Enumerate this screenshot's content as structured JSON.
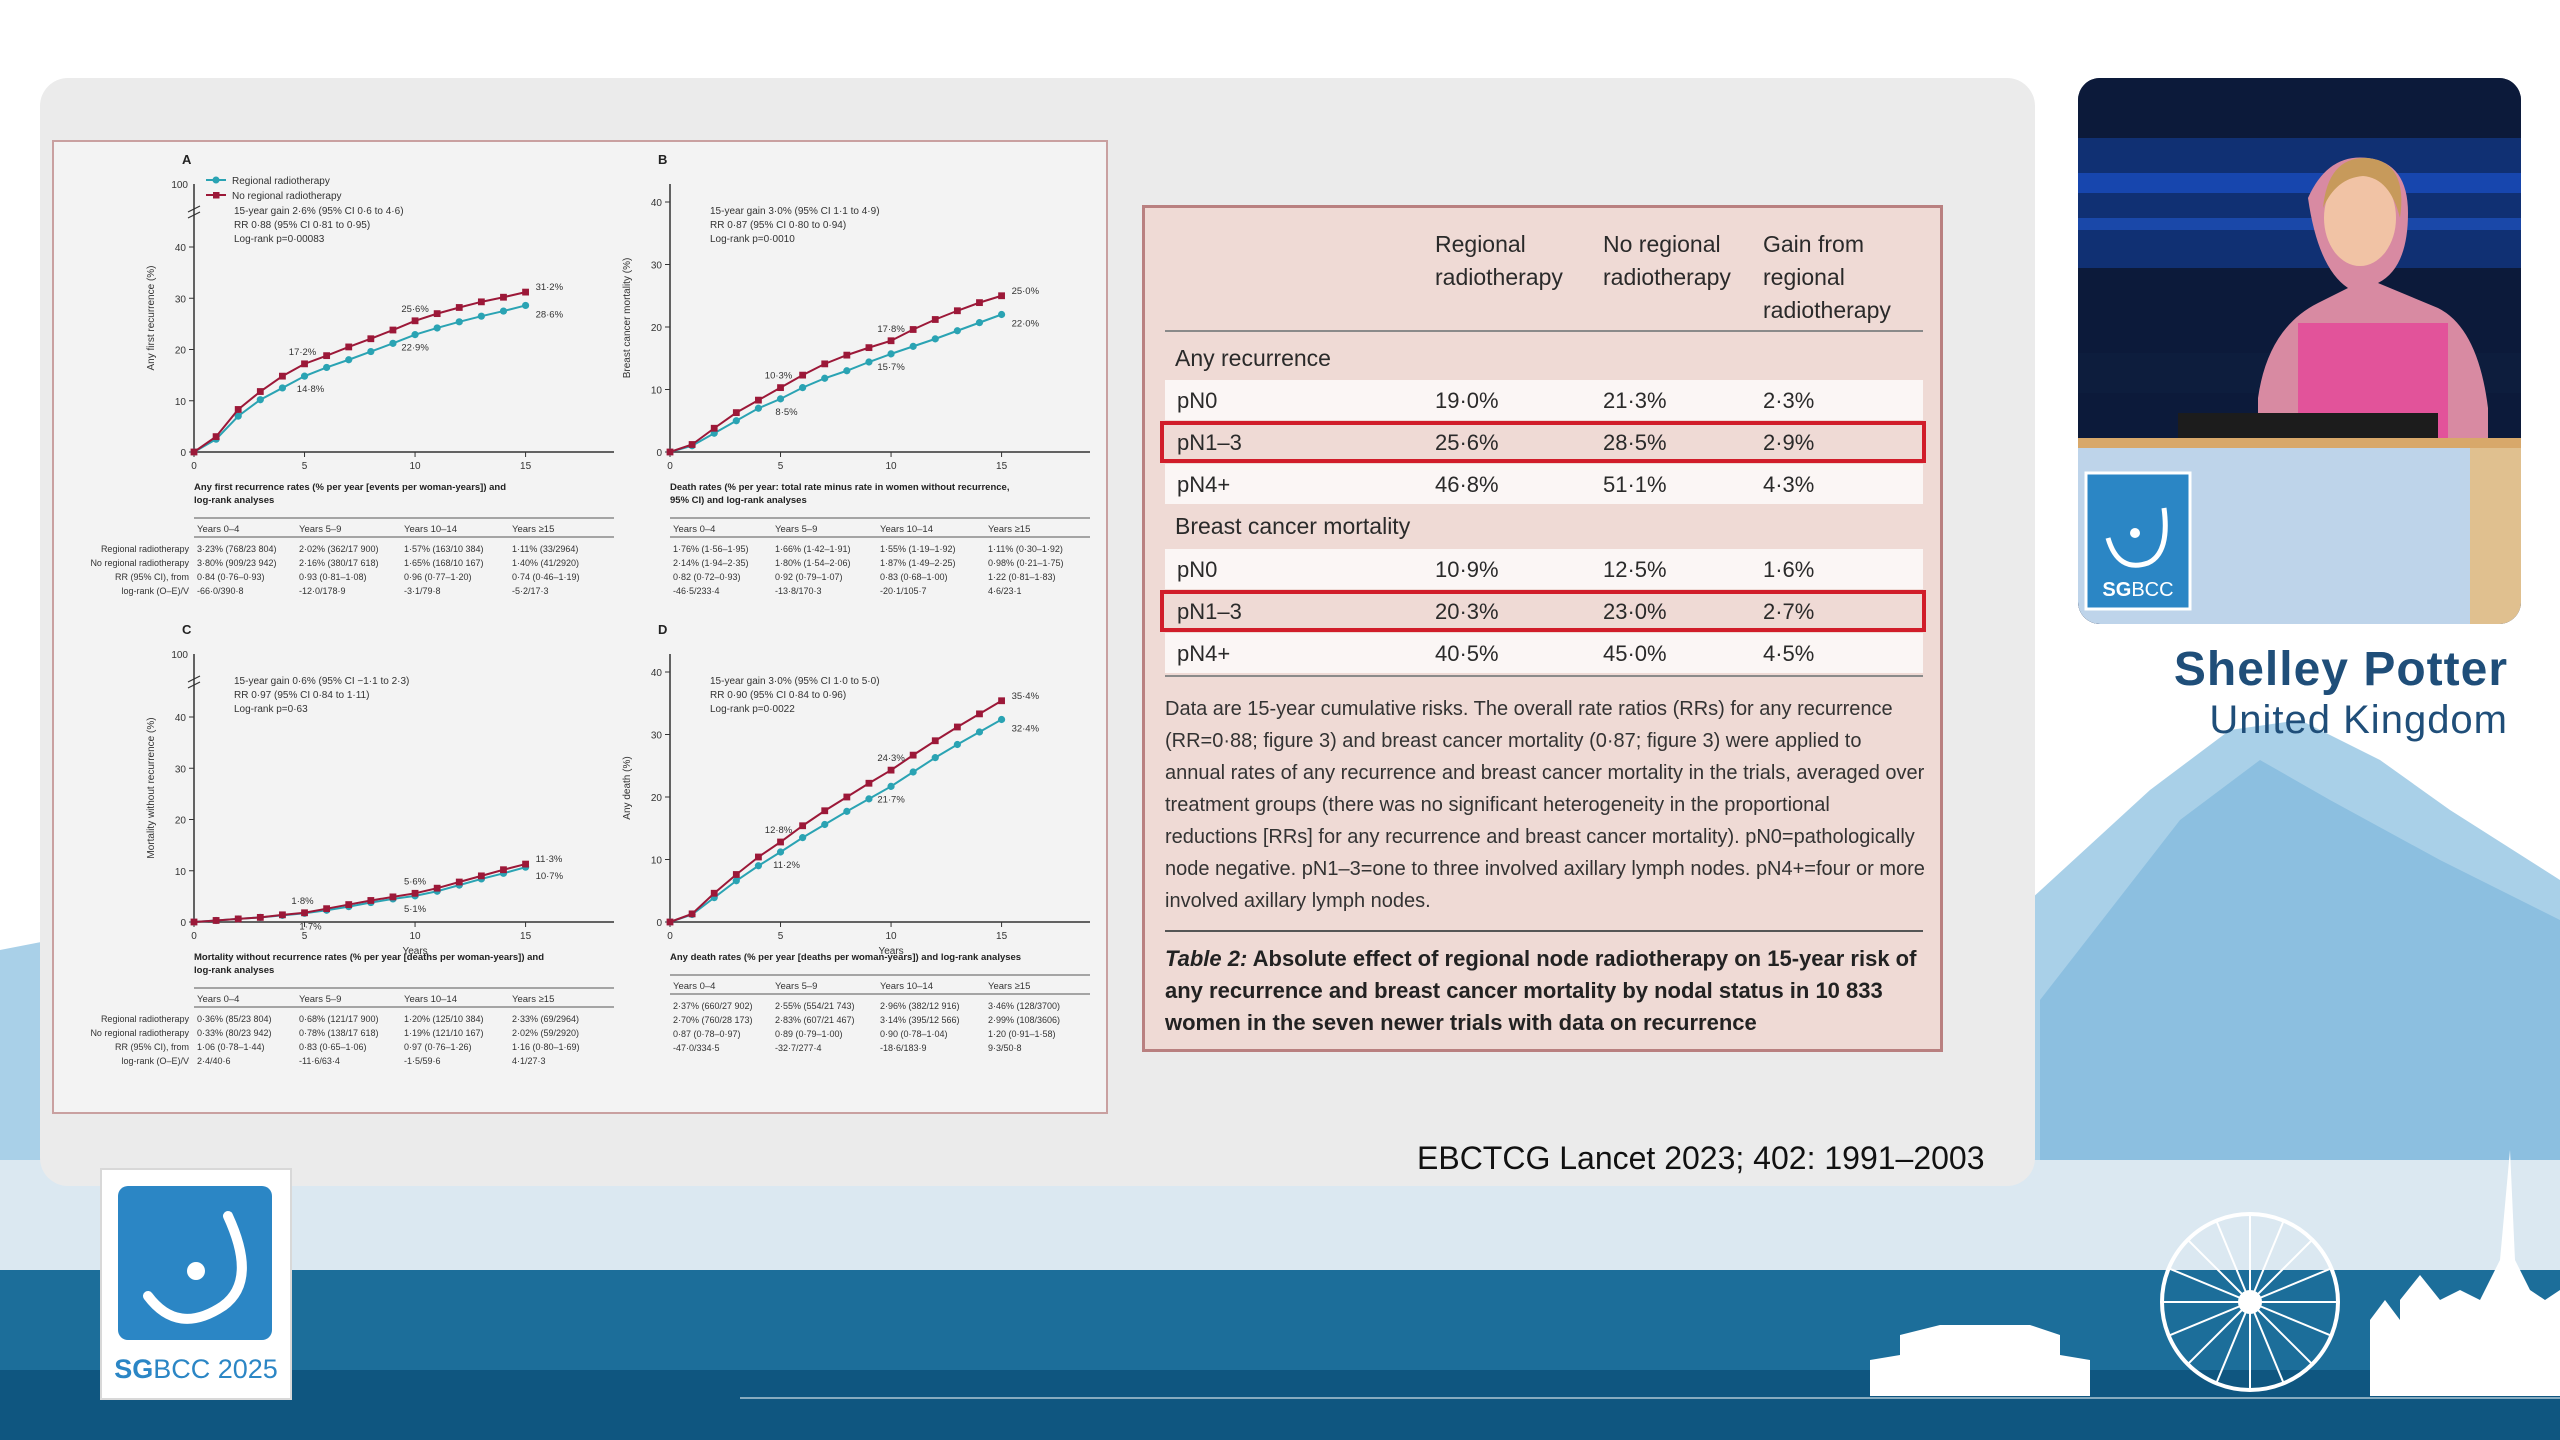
{
  "citation": "EBCTCG Lancet 2023; 402: 1991–2003",
  "speaker": {
    "name": "Shelley Potter",
    "country": "United Kingdom"
  },
  "branding": {
    "conference_sg": "SG",
    "conference_bcc": "BCC",
    "conference_year": " 2025",
    "podium_logo_sg": "SG",
    "podium_logo_bcc": "BCC"
  },
  "colors": {
    "regional": "#2aa3b3",
    "no_regional": "#9c1838",
    "accent_red": "#d11d2a",
    "brand_blue": "#2b86c5",
    "band_blue": "#1c6e9a"
  },
  "legend": {
    "regional": "Regional radiotherapy",
    "no_regional": "No regional radiotherapy"
  },
  "chart_data": [
    {
      "type": "line",
      "panel": "A",
      "ylabel": "Any first recurrence (%)",
      "xlabel": "",
      "ylim": [
        0,
        40
      ],
      "ybreak_top": 100,
      "yticks": [
        0,
        10,
        20,
        30,
        40
      ],
      "x": [
        0,
        1,
        2,
        3,
        4,
        5,
        6,
        7,
        8,
        9,
        10,
        11,
        12,
        13,
        14,
        15
      ],
      "series": [
        {
          "name": "Regional radiotherapy",
          "values": [
            0,
            2.5,
            7,
            10.2,
            12.5,
            14.8,
            16.5,
            18,
            19.6,
            21.2,
            22.9,
            24.2,
            25.4,
            26.5,
            27.5,
            28.6
          ]
        },
        {
          "name": "No regional radiotherapy",
          "values": [
            0,
            3,
            8.3,
            11.8,
            14.8,
            17.2,
            18.8,
            20.5,
            22.1,
            23.8,
            25.6,
            27,
            28.2,
            29.3,
            30.2,
            31.2
          ]
        }
      ],
      "annotations": [
        {
          "x": 5,
          "y": 17.2,
          "text": "17·2%"
        },
        {
          "x": 5,
          "y": 14.8,
          "text": "14·8%"
        },
        {
          "x": 10,
          "y": 25.6,
          "text": "25·6%"
        },
        {
          "x": 10,
          "y": 22.9,
          "text": "22·9%"
        },
        {
          "x": 15,
          "y": 31.2,
          "text": "31·2%"
        },
        {
          "x": 15,
          "y": 28.6,
          "text": "28·6%"
        }
      ],
      "stats": [
        "15-year gain 2·6% (95% CI 0·6 to 4·6)",
        "RR 0·88 (95% CI 0·81 to 0·95)",
        "Log-rank p=0·00083"
      ],
      "table_title": [
        "Any first recurrence rates (% per year [events per woman-years]) and",
        "log-rank analyses"
      ],
      "table_cols": [
        "Years 0–4",
        "Years 5–9",
        "Years 10–14",
        "Years ≥15"
      ],
      "table_rows": [
        {
          "label": "Regional radiotherapy",
          "cells": [
            "3·23% (768/23 804)",
            "2·02% (362/17 900)",
            "1·57% (163/10 384)",
            "1·11% (33/2964)"
          ]
        },
        {
          "label": "No regional radiotherapy",
          "cells": [
            "3·80% (909/23 942)",
            "2·16% (380/17 618)",
            "1·65% (168/10 167)",
            "1·40% (41/2920)"
          ]
        },
        {
          "label": "RR (95% CI), from",
          "cells": [
            "0·84 (0·76–0·93)",
            "0·93 (0·81–1·08)",
            "0·96 (0·77–1·20)",
            "0·74 (0·46–1·19)"
          ]
        },
        {
          "label": "log-rank (O–E)/V",
          "cells": [
            "-66·0/390·8",
            "-12·0/178·9",
            "-3·1/79·8",
            "-5·2/17·3"
          ]
        }
      ]
    },
    {
      "type": "line",
      "panel": "B",
      "ylabel": "Breast cancer mortality (%)",
      "xlabel": "",
      "ylim": [
        0,
        40
      ],
      "ybreak_top": null,
      "yticks": [
        0,
        10,
        20,
        30,
        40
      ],
      "x": [
        0,
        1,
        2,
        3,
        4,
        5,
        6,
        7,
        8,
        9,
        10,
        11,
        12,
        13,
        14,
        15
      ],
      "series": [
        {
          "name": "Regional radiotherapy",
          "values": [
            0,
            1,
            3,
            5,
            7,
            8.5,
            10.3,
            11.8,
            13,
            14.4,
            15.7,
            16.9,
            18.1,
            19.4,
            20.7,
            22.0
          ]
        },
        {
          "name": "No regional radiotherapy",
          "values": [
            0,
            1.2,
            3.8,
            6.3,
            8.3,
            10.3,
            12.3,
            14.1,
            15.5,
            16.7,
            17.8,
            19.6,
            21.2,
            22.6,
            23.9,
            25.0
          ]
        }
      ],
      "annotations": [
        {
          "x": 5,
          "y": 10.3,
          "text": "10·3%"
        },
        {
          "x": 5,
          "y": 8.5,
          "text": "8·5%"
        },
        {
          "x": 10,
          "y": 17.8,
          "text": "17·8%"
        },
        {
          "x": 10,
          "y": 15.7,
          "text": "15·7%"
        },
        {
          "x": 15,
          "y": 25.0,
          "text": "25·0%"
        },
        {
          "x": 15,
          "y": 22.0,
          "text": "22·0%"
        }
      ],
      "stats": [
        "15-year gain 3·0% (95% CI 1·1 to 4·9)",
        "RR 0·87 (95% CI 0·80 to 0·94)",
        "Log-rank p=0·0010"
      ],
      "table_title": [
        "Death rates (% per year: total rate minus rate in women without recurrence,",
        "95% CI) and log-rank analyses"
      ],
      "table_cols": [
        "Years 0–4",
        "Years 5–9",
        "Years 10–14",
        "Years ≥15"
      ],
      "table_rows": [
        {
          "label": "",
          "cells": [
            "1·76% (1·56–1·95)",
            "1·66% (1·42–1·91)",
            "1·55% (1·19–1·92)",
            "1·11% (0·30–1·92)"
          ]
        },
        {
          "label": "",
          "cells": [
            "2·14% (1·94–2·35)",
            "1·80% (1·54–2·06)",
            "1·87% (1·49–2·25)",
            "0·98% (0·21–1·75)"
          ]
        },
        {
          "label": "",
          "cells": [
            "0·82 (0·72–0·93)",
            "0·92 (0·79–1·07)",
            "0·83 (0·68–1·00)",
            "1·22 (0·81–1·83)"
          ]
        },
        {
          "label": "",
          "cells": [
            "-46·5/233·4",
            "-13·8/170·3",
            "-20·1/105·7",
            "4·6/23·1"
          ]
        }
      ]
    },
    {
      "type": "line",
      "panel": "C",
      "ylabel": "Mortality without recurrence (%)",
      "xlabel": "Years",
      "ylim": [
        0,
        40
      ],
      "ybreak_top": 100,
      "yticks": [
        0,
        10,
        20,
        30,
        40
      ],
      "x": [
        0,
        1,
        2,
        3,
        4,
        5,
        6,
        7,
        8,
        9,
        10,
        11,
        12,
        13,
        14,
        15
      ],
      "series": [
        {
          "name": "Regional radiotherapy",
          "values": [
            0,
            0.3,
            0.6,
            0.9,
            1.3,
            1.7,
            2.3,
            3.0,
            3.8,
            4.5,
            5.1,
            6.0,
            7.2,
            8.4,
            9.5,
            10.7
          ]
        },
        {
          "name": "No regional radiotherapy",
          "values": [
            0,
            0.3,
            0.6,
            0.9,
            1.4,
            1.8,
            2.6,
            3.4,
            4.2,
            4.9,
            5.6,
            6.6,
            7.8,
            9.0,
            10.2,
            11.3
          ]
        }
      ],
      "annotations": [
        {
          "x": 5,
          "y": 1.8,
          "text": "1·8%"
        },
        {
          "x": 5,
          "y": 1.7,
          "text": "1·7%"
        },
        {
          "x": 10,
          "y": 5.6,
          "text": "5·6%"
        },
        {
          "x": 10,
          "y": 5.1,
          "text": "5·1%"
        },
        {
          "x": 15,
          "y": 11.3,
          "text": "11·3%"
        },
        {
          "x": 15,
          "y": 10.7,
          "text": "10·7%"
        }
      ],
      "stats": [
        "15-year gain 0·6% (95% CI −1·1 to 2·3)",
        "RR 0·97 (95% CI 0·84 to 1·11)",
        "Log-rank p=0·63"
      ],
      "table_title": [
        "Mortality without recurrence rates (% per year [deaths per woman-years]) and",
        "log-rank analyses"
      ],
      "table_cols": [
        "Years 0–4",
        "Years 5–9",
        "Years 10–14",
        "Years ≥15"
      ],
      "table_rows": [
        {
          "label": "Regional radiotherapy",
          "cells": [
            "0·36% (85/23 804)",
            "0·68% (121/17 900)",
            "1·20% (125/10 384)",
            "2·33% (69/2964)"
          ]
        },
        {
          "label": "No regional radiotherapy",
          "cells": [
            "0·33% (80/23 942)",
            "0·78% (138/17 618)",
            "1·19% (121/10 167)",
            "2·02% (59/2920)"
          ]
        },
        {
          "label": "RR (95% CI), from",
          "cells": [
            "1·06 (0·78–1·44)",
            "0·83 (0·65–1·06)",
            "0·97 (0·76–1·26)",
            "1·16 (0·80–1·69)"
          ]
        },
        {
          "label": "log-rank (O–E)/V",
          "cells": [
            "2·4/40·6",
            "-11·6/63·4",
            "-1·5/59·6",
            "4·1/27·3"
          ]
        }
      ]
    },
    {
      "type": "line",
      "panel": "D",
      "ylabel": "Any death (%)",
      "xlabel": "Years",
      "ylim": [
        0,
        40
      ],
      "ybreak_top": null,
      "yticks": [
        0,
        10,
        20,
        30,
        40
      ],
      "x": [
        0,
        1,
        2,
        3,
        4,
        5,
        6,
        7,
        8,
        9,
        10,
        11,
        12,
        13,
        14,
        15
      ],
      "series": [
        {
          "name": "Regional radiotherapy",
          "values": [
            0,
            1.2,
            3.9,
            6.6,
            9,
            11.2,
            13.5,
            15.6,
            17.7,
            19.7,
            21.7,
            24,
            26.3,
            28.4,
            30.4,
            32.4
          ]
        },
        {
          "name": "No regional radiotherapy",
          "values": [
            0,
            1.3,
            4.6,
            7.6,
            10.4,
            12.8,
            15.4,
            17.8,
            20,
            22.2,
            24.3,
            26.7,
            29,
            31.2,
            33.3,
            35.4
          ]
        }
      ],
      "annotations": [
        {
          "x": 5,
          "y": 12.8,
          "text": "12·8%"
        },
        {
          "x": 5,
          "y": 11.2,
          "text": "11·2%"
        },
        {
          "x": 10,
          "y": 24.3,
          "text": "24·3%"
        },
        {
          "x": 10,
          "y": 21.7,
          "text": "21·7%"
        },
        {
          "x": 15,
          "y": 35.4,
          "text": "35·4%"
        },
        {
          "x": 15,
          "y": 32.4,
          "text": "32·4%"
        }
      ],
      "stats": [
        "15-year gain 3·0% (95% CI 1·0 to 5·0)",
        "RR 0·90 (95% CI 0·84 to 0·96)",
        "Log-rank p=0·0022"
      ],
      "table_title": [
        "Any death rates (% per year [deaths per woman-years]) and log-rank analyses"
      ],
      "table_cols": [
        "Years 0–4",
        "Years 5–9",
        "Years 10–14",
        "Years ≥15"
      ],
      "table_rows": [
        {
          "label": "",
          "cells": [
            "2·37% (660/27 902)",
            "2·55% (554/21 743)",
            "2·96% (382/12 916)",
            "3·46% (128/3700)"
          ]
        },
        {
          "label": "",
          "cells": [
            "2·70% (760/28 173)",
            "2·83% (607/21 467)",
            "3·14% (395/12 566)",
            "2·99% (108/3606)"
          ]
        },
        {
          "label": "",
          "cells": [
            "0·87 (0·78–0·97)",
            "0·89 (0·79–1·00)",
            "0·90 (0·78–1·04)",
            "1·20 (0·91–1·58)"
          ]
        },
        {
          "label": "",
          "cells": [
            "-47·0/334·5",
            "-32·7/277·4",
            "-18·6/183·9",
            "9·3/50·8"
          ]
        }
      ]
    },
    {
      "type": "table",
      "columns": [
        "",
        "Regional radiotherapy",
        "No regional radiotherapy",
        "Gain from regional radiotherapy"
      ],
      "header_lines": [
        [
          "Regional",
          "radiotherapy"
        ],
        [
          "No regional",
          "radiotherapy"
        ],
        [
          "Gain from",
          "regional",
          "radiotherapy"
        ]
      ],
      "sections": [
        {
          "title": "Any recurrence",
          "rows": [
            {
              "label": "pN0",
              "regional": "19·0%",
              "no_regional": "21·3%",
              "gain": "2·3%",
              "highlight": false
            },
            {
              "label": "pN1–3",
              "regional": "25·6%",
              "no_regional": "28·5%",
              "gain": "2·9%",
              "highlight": true
            },
            {
              "label": "pN4+",
              "regional": "46·8%",
              "no_regional": "51·1%",
              "gain": "4·3%",
              "highlight": false
            }
          ]
        },
        {
          "title": "Breast cancer mortality",
          "rows": [
            {
              "label": "pN0",
              "regional": "10·9%",
              "no_regional": "12·5%",
              "gain": "1·6%",
              "highlight": false
            },
            {
              "label": "pN1–3",
              "regional": "20·3%",
              "no_regional": "23·0%",
              "gain": "2·7%",
              "highlight": true
            },
            {
              "label": "pN4+",
              "regional": "40·5%",
              "no_regional": "45·0%",
              "gain": "4·5%",
              "highlight": false
            }
          ]
        }
      ],
      "note": "Data are 15-year cumulative risks. The overall rate ratios (RRs) for any recurrence (RR=0·88; figure 3) and breast cancer mortality (0·87; figure 3) were applied to annual rates of any recurrence and breast cancer mortality in the trials, averaged over treatment groups (there was no significant heterogeneity in the proportional reductions [RRs] for any recurrence and breast cancer mortality). pN0=pathologically node negative. pN1–3=one to three involved axillary lymph nodes. pN4+=four or more involved axillary lymph nodes.",
      "caption_label": "Table 2:",
      "caption": " Absolute effect of regional node radiotherapy on 15-year risk of any recurrence and breast cancer mortality by nodal status in 10 833 women in the seven newer trials with data on recurrence"
    }
  ]
}
